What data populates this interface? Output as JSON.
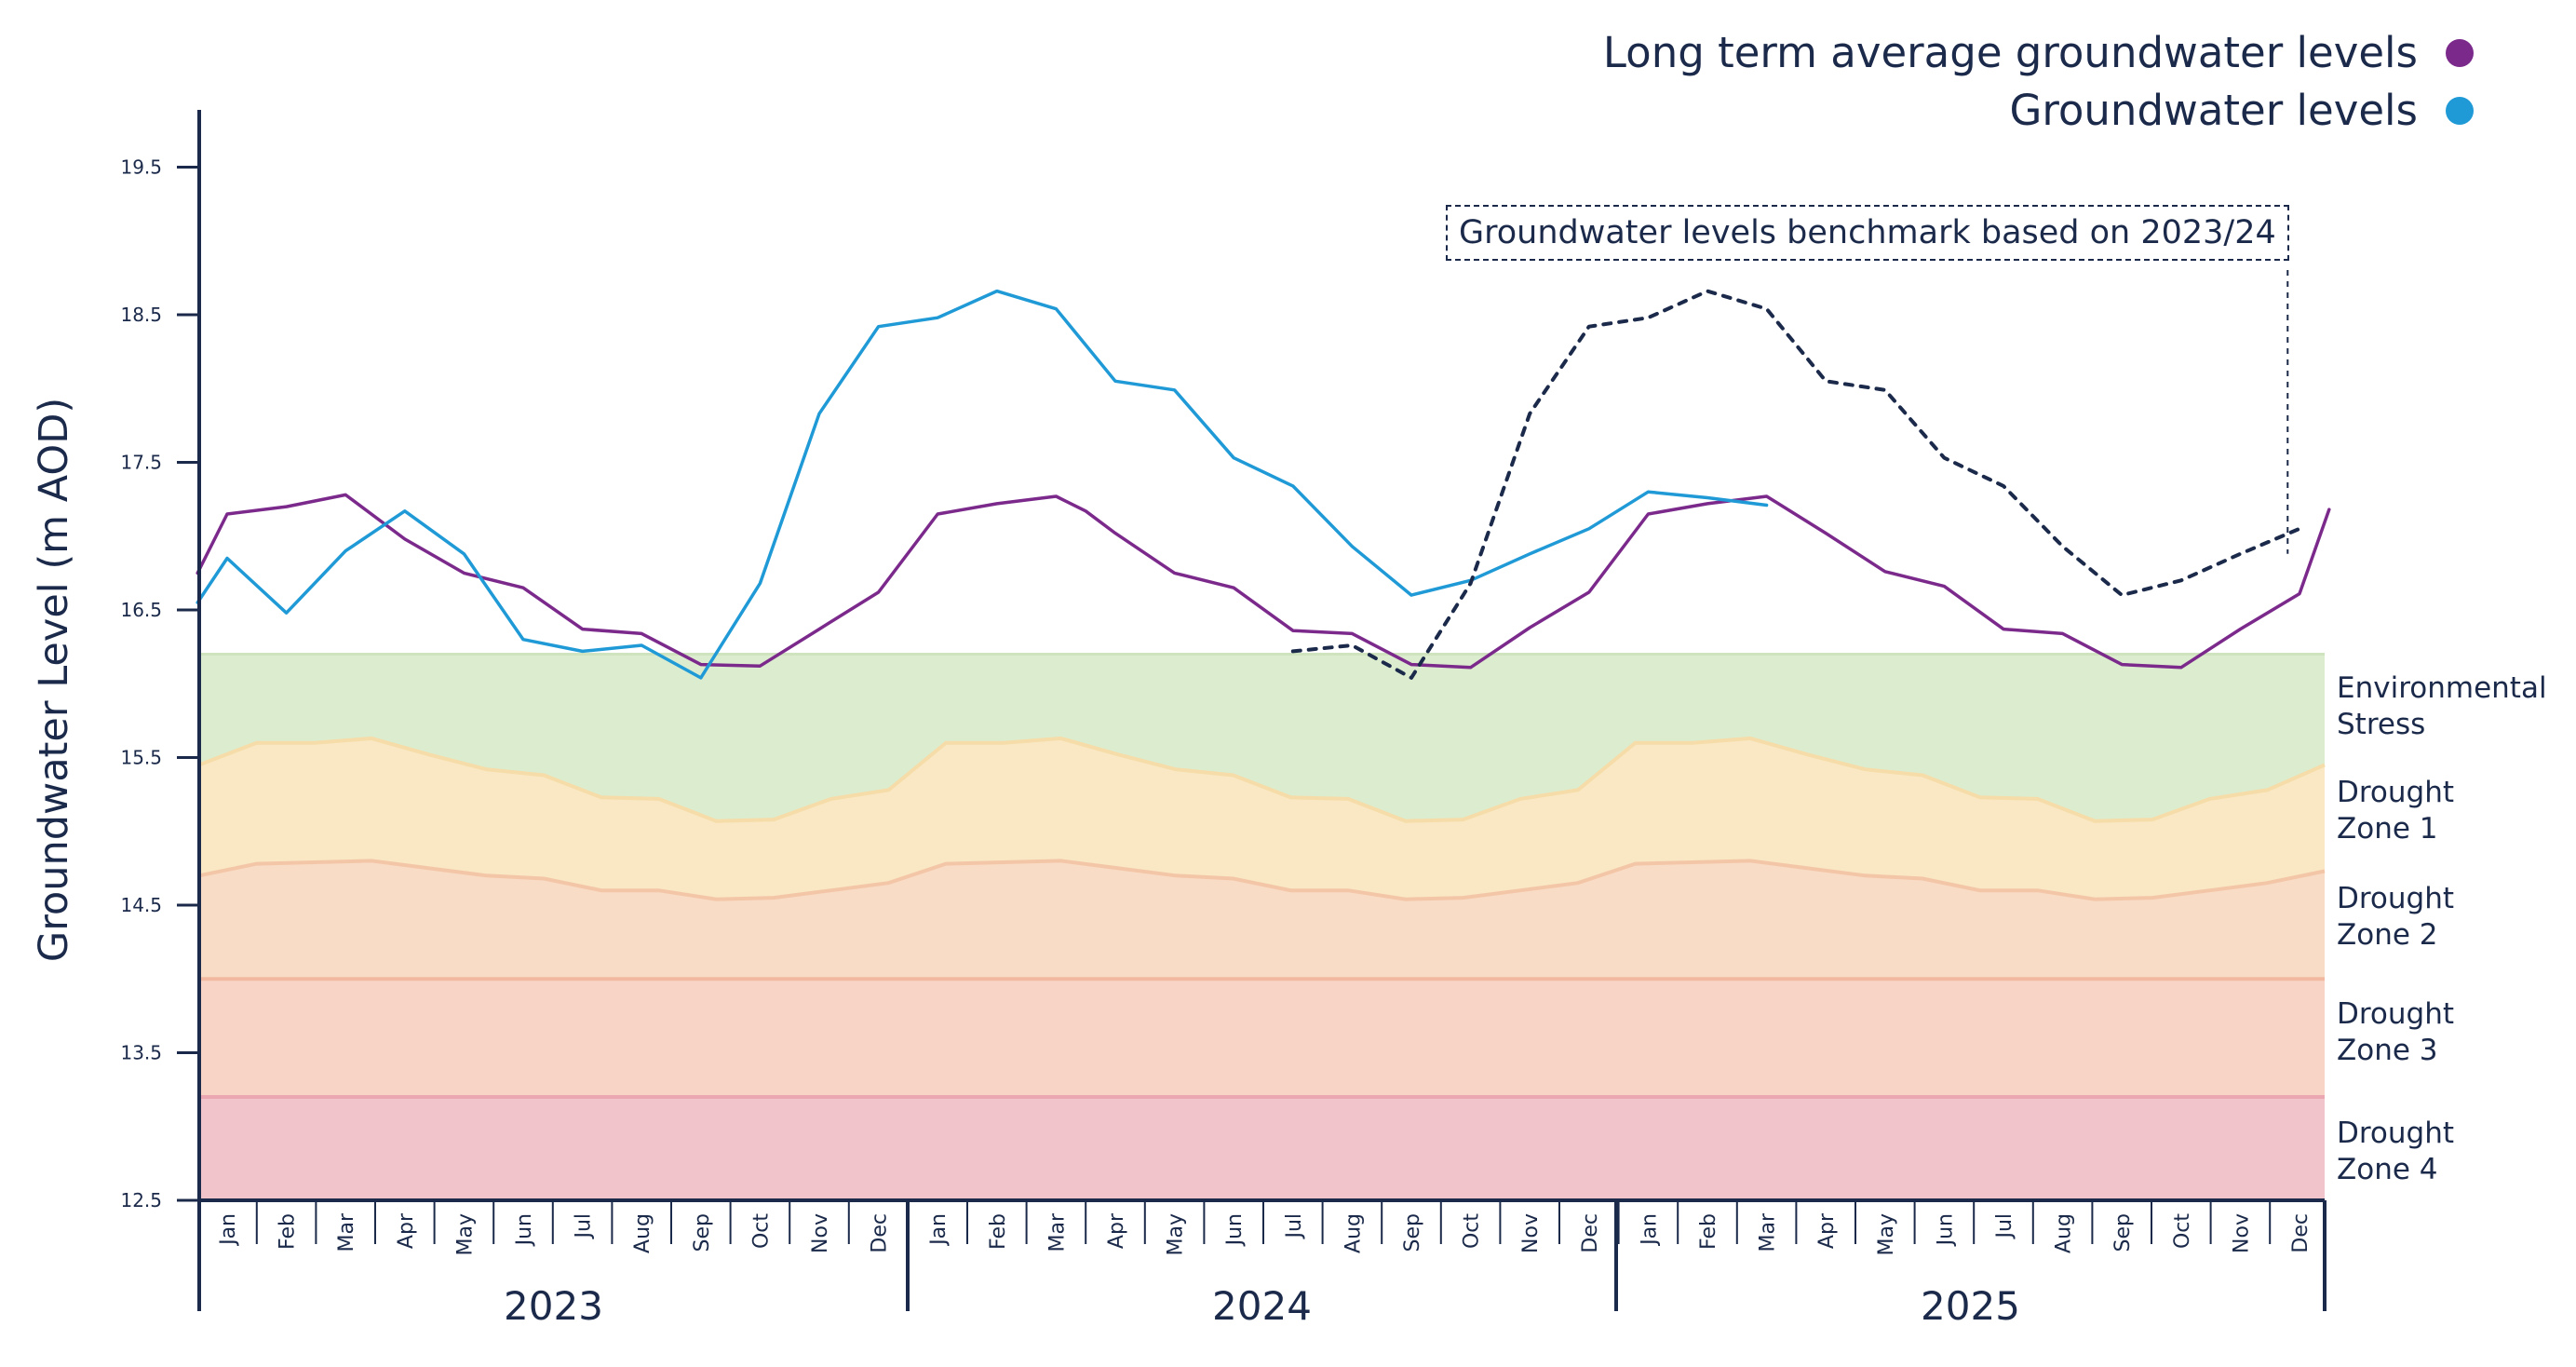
{
  "legend": {
    "average_label": "Long term average groundwater levels",
    "levels_label": "Groundwater levels",
    "average_color": "#7b2a8c",
    "levels_color": "#1f9ad6"
  },
  "annotation": {
    "text": "Groundwater levels benchmark based on 2023/24"
  },
  "zones": [
    {
      "line1": "Environmental",
      "line2": "Stress",
      "color": "#dcedcf"
    },
    {
      "line1": "Drought",
      "line2": "Zone 1",
      "color": "#f9e8c3"
    },
    {
      "line1": "Drought",
      "line2": "Zone 2",
      "color": "#f9dcc5"
    },
    {
      "line1": "Drought",
      "line2": "Zone 3",
      "color": "#f8d4c6"
    },
    {
      "line1": "Drought",
      "line2": "Zone 4",
      "color": "#f1c3cb"
    }
  ],
  "chart_data": {
    "type": "line",
    "title": "",
    "xlabel": "",
    "ylabel": "Groundwater Level (m AOD)",
    "ylim": [
      12.5,
      19.5
    ],
    "yticks": [
      "19.5",
      "18.5",
      "17.5",
      "16.5",
      "15.5",
      "14.5",
      "13.5",
      "12.5"
    ],
    "month_labels": [
      "Jan",
      "Feb",
      "Mar",
      "Apr",
      "May",
      "Jun",
      "Jul",
      "Aug",
      "Sep",
      "Oct",
      "Nov",
      "Dec"
    ],
    "years": [
      "2023",
      "2024",
      "2025"
    ],
    "series": [
      {
        "name": "Long term average groundwater levels",
        "color": "#7b2a8c",
        "style": "solid",
        "x": [
          -0.5,
          0,
          1,
          2,
          3,
          4,
          5,
          6,
          7,
          8,
          9,
          10,
          11,
          12,
          13,
          14,
          14.5,
          15,
          16,
          17,
          18,
          19,
          20,
          21,
          22,
          23,
          24,
          25,
          26,
          27,
          28,
          29,
          30,
          31,
          32,
          33,
          34,
          35,
          35.5
        ],
        "values": [
          16.75,
          17.15,
          17.2,
          17.28,
          16.98,
          16.75,
          16.65,
          16.37,
          16.34,
          16.13,
          16.12,
          16.37,
          16.62,
          17.15,
          17.22,
          17.27,
          17.17,
          17.02,
          16.75,
          16.65,
          16.36,
          16.34,
          16.13,
          16.11,
          16.38,
          16.62,
          17.15,
          17.22,
          17.27,
          17.02,
          16.76,
          16.66,
          16.37,
          16.34,
          16.13,
          16.11,
          16.37,
          16.61,
          17.18
        ]
      },
      {
        "name": "Groundwater levels",
        "color": "#1f9ad6",
        "style": "solid",
        "x": [
          -0.5,
          0,
          1,
          2,
          3,
          4,
          5,
          6,
          7,
          8,
          9,
          10,
          11,
          12,
          13,
          14,
          15,
          16,
          17,
          18,
          19,
          20,
          21,
          22,
          23,
          24,
          25,
          26
        ],
        "values": [
          16.55,
          16.85,
          16.48,
          16.9,
          17.17,
          16.88,
          16.3,
          16.22,
          16.26,
          16.04,
          16.68,
          17.83,
          18.42,
          18.48,
          18.66,
          18.54,
          18.05,
          17.99,
          17.53,
          17.34,
          16.93,
          16.6,
          16.7,
          16.88,
          17.05,
          17.3,
          17.26,
          17.21
        ]
      },
      {
        "name": "Groundwater levels benchmark based on 2023/24",
        "color": "#1b2a4a",
        "style": "dashed",
        "x": [
          18,
          19,
          20,
          21,
          22,
          23,
          24,
          25,
          26,
          27,
          28,
          29,
          30,
          31,
          32,
          33,
          34,
          35
        ],
        "values": [
          16.22,
          16.26,
          16.04,
          16.68,
          17.83,
          18.42,
          18.48,
          18.66,
          18.54,
          18.05,
          17.99,
          17.53,
          17.34,
          16.93,
          16.6,
          16.7,
          16.88,
          17.05
        ]
      }
    ],
    "zone_bounds": {
      "environmental_stress_top": 16.2,
      "drought_zone_1_top": [
        15.45,
        15.6,
        15.6,
        15.63,
        15.52,
        15.42,
        15.38,
        15.23,
        15.22,
        15.07,
        15.08,
        15.22,
        15.28,
        15.6,
        15.6,
        15.63,
        15.52,
        15.42,
        15.38,
        15.23,
        15.22,
        15.07,
        15.08,
        15.22,
        15.28,
        15.6,
        15.6,
        15.63,
        15.52,
        15.42,
        15.38,
        15.23,
        15.22,
        15.07,
        15.08,
        15.22,
        15.28,
        15.45
      ],
      "drought_zone_2_top": [
        14.7,
        14.78,
        14.79,
        14.8,
        14.75,
        14.7,
        14.68,
        14.6,
        14.6,
        14.54,
        14.55,
        14.6,
        14.65,
        14.78,
        14.79,
        14.8,
        14.75,
        14.7,
        14.68,
        14.6,
        14.6,
        14.54,
        14.55,
        14.6,
        14.65,
        14.78,
        14.79,
        14.8,
        14.75,
        14.7,
        14.68,
        14.6,
        14.6,
        14.54,
        14.55,
        14.6,
        14.65,
        14.73
      ],
      "drought_zone_3_top": 14.0,
      "drought_zone_4_top": 13.2
    }
  }
}
